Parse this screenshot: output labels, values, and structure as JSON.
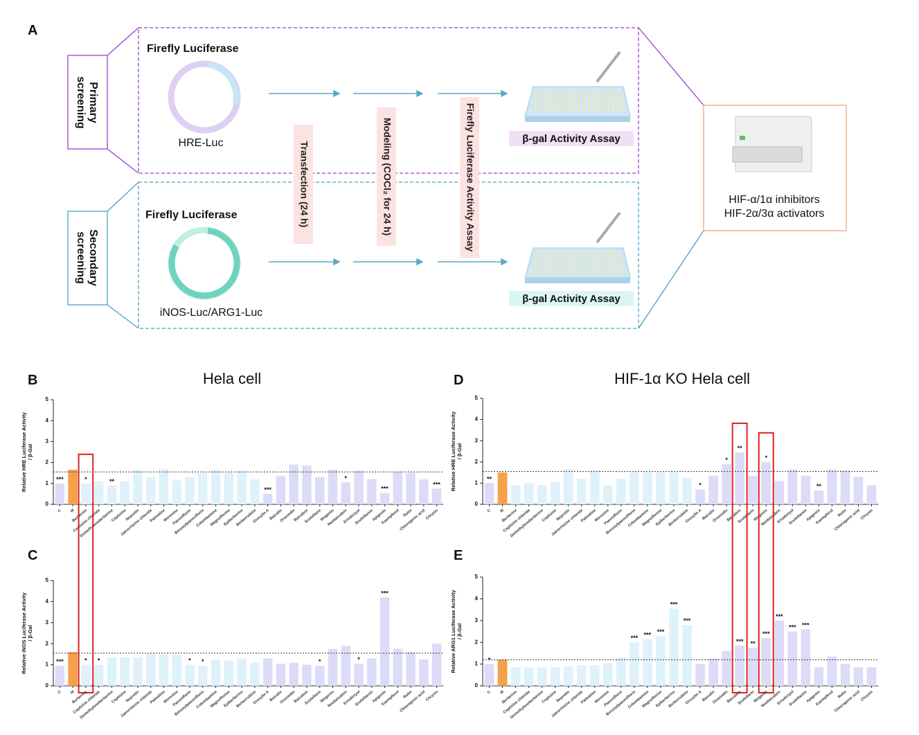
{
  "diagram": {
    "label": "A",
    "primary": {
      "label": [
        "Primary",
        "screening"
      ],
      "reporter": "Firefly Luciferase",
      "plasmid": "HRE-Luc",
      "assay": "β-gal Activity Assay"
    },
    "secondary": {
      "label": [
        "Secondary",
        "screening"
      ],
      "reporter": "Firefly Luciferase",
      "plasmid": "iNOS-Luc/ARG1-Luc",
      "assay": "β-gal Activity Assay"
    },
    "steps": [
      "Transfection (24 h)",
      "Modeling (COCl₂ for 24 h)",
      "Firefly Luciferase Activity Assay"
    ],
    "result": [
      "HIF-α/1α inhibitors",
      "HIF-2α/3α activators"
    ]
  },
  "chart_data": [
    {
      "type": "bar",
      "panel": "B",
      "title": "Hela cell",
      "ylabel": [
        "Relative HRE Luciferase Activity",
        "/ β-Gal"
      ],
      "categories": [
        "C",
        "M",
        "Berberine",
        "Coptisine chloride",
        "Demethyleneberberine",
        "Coptisine",
        "Neprotin",
        "Jatrorrhizine chloride",
        "Palmatine",
        "Worenine",
        "Paeoniflorin",
        "Benzoylpaeoniflorin",
        "Columbamine",
        "Magnoflorine",
        "Epiberberine",
        "Berberrubine",
        "Oroxylin A",
        "Baicalin",
        "Oroxindin",
        "Baicalein",
        "Scutellarin",
        "Wogonin",
        "Neobaicalein",
        "Eriodictyol",
        "Scutellarein",
        "Apigenin",
        "Kaempferol",
        "Rutin",
        "Chlorogenic acid",
        "Chrysin"
      ],
      "values": [
        1.0,
        1.65,
        1.0,
        1.1,
        0.9,
        1.1,
        1.65,
        1.3,
        1.7,
        1.15,
        1.3,
        1.5,
        1.65,
        1.5,
        1.6,
        1.2,
        0.5,
        1.35,
        1.9,
        1.85,
        1.3,
        1.65,
        1.05,
        1.6,
        1.2,
        0.55,
        1.55,
        1.5,
        1.2,
        0.75
      ],
      "significance": [
        "***",
        null,
        "*",
        null,
        "**",
        null,
        null,
        null,
        null,
        null,
        null,
        null,
        null,
        null,
        null,
        null,
        "***",
        null,
        null,
        null,
        null,
        null,
        "*",
        null,
        null,
        "***",
        null,
        null,
        null,
        "***"
      ],
      "colors": [
        "#dcdcf8",
        "#f5a04a",
        "#dff2fb",
        "#dff2fb",
        "#dff2fb",
        "#dff2fb",
        "#dff2fb",
        "#dff2fb",
        "#dff2fb",
        "#dff2fb",
        "#dff2fb",
        "#dff2fb",
        "#dff2fb",
        "#dff2fb",
        "#dff2fb",
        "#dff2fb",
        "#dcdcf8",
        "#dcdcf8",
        "#dcdcf8",
        "#dcdcf8",
        "#dcdcf8",
        "#dcdcf8",
        "#dcdcf8",
        "#dcdcf8",
        "#dcdcf8",
        "#dcdcf8",
        "#dcdcf8",
        "#dcdcf8",
        "#dcdcf8",
        "#dcdcf8"
      ],
      "reference_line": 1.55,
      "highlight": [
        "Berberine"
      ],
      "ylim": [
        0,
        5
      ],
      "yticks": [
        0,
        1,
        2,
        3,
        4,
        5
      ]
    },
    {
      "type": "bar",
      "panel": "C",
      "ylabel": [
        "Relative iNOS Luciferase Activity",
        "/ β-Gal"
      ],
      "categories": [
        "C",
        "M",
        "Berberine",
        "Coptisine chloride",
        "Demethyleneberberine",
        "Coptisine",
        "Neprotin",
        "Jatrorrhizine chloride",
        "Palmatine",
        "Worenine",
        "Paeoniflorin",
        "Benzoylpaeoniflorin",
        "Columbamine",
        "Magnoflorine",
        "Epiberberine",
        "Berberrubine",
        "Oroxylin A",
        "Baicalin",
        "Oroxindin",
        "Baicalein",
        "Scutellarin",
        "Wogonin",
        "Neobaicalein",
        "Eriodictyol",
        "Scutellarein",
        "Apigenin",
        "Kaempferol",
        "Rutin",
        "Chlorogenic acid",
        "Chrysin"
      ],
      "values": [
        0.95,
        1.6,
        1.0,
        1.0,
        1.35,
        1.35,
        1.35,
        1.55,
        1.5,
        1.45,
        1.0,
        0.95,
        1.25,
        1.2,
        1.3,
        1.1,
        1.3,
        1.05,
        1.1,
        1.0,
        0.95,
        1.75,
        1.9,
        1.05,
        1.3,
        4.2,
        1.75,
        1.6,
        1.25,
        2.0
      ],
      "significance": [
        "***",
        null,
        "*",
        "*",
        null,
        null,
        null,
        null,
        null,
        null,
        "*",
        "*",
        null,
        null,
        null,
        null,
        null,
        null,
        null,
        null,
        "*",
        null,
        null,
        "*",
        null,
        "***",
        null,
        null,
        null,
        null
      ],
      "colors": [
        "#dcdcf8",
        "#f5a04a",
        "#dff2fb",
        "#dff2fb",
        "#dff2fb",
        "#dff2fb",
        "#dff2fb",
        "#dff2fb",
        "#dff2fb",
        "#dff2fb",
        "#dff2fb",
        "#dff2fb",
        "#dff2fb",
        "#dff2fb",
        "#dff2fb",
        "#dff2fb",
        "#dcdcf8",
        "#dcdcf8",
        "#dcdcf8",
        "#dcdcf8",
        "#dcdcf8",
        "#dcdcf8",
        "#dcdcf8",
        "#dcdcf8",
        "#dcdcf8",
        "#dcdcf8",
        "#dcdcf8",
        "#dcdcf8",
        "#dcdcf8",
        "#dcdcf8"
      ],
      "reference_line": 1.55,
      "ylim": [
        0,
        5
      ],
      "yticks": [
        0,
        1,
        2,
        3,
        4,
        5
      ]
    },
    {
      "type": "bar",
      "panel": "D",
      "title": "HIF-1α KO Hela cell",
      "ylabel": [
        "Relative HRE Luciferase Activity",
        "/ β-Gal"
      ],
      "categories": [
        "C",
        "M",
        "Berberine",
        "Coptisine chloride",
        "Demethyleneberberine",
        "Coptisine",
        "Neprotin",
        "Jatrorrhizine chloride",
        "Palmatine",
        "Worenine",
        "Paeoniflorin",
        "Benzoylpaeoniflorin",
        "Columbamine",
        "Magnoflorine",
        "Epiberberine",
        "Berberrubine",
        "Oroxylin A",
        "Baicalin",
        "Oroxindin",
        "Baicalein",
        "Scutellarin",
        "Wogonin",
        "Neobaicalein",
        "Eriodictyol",
        "Scutellarein",
        "Apigenin",
        "Kaempferol",
        "Rutin",
        "Chlorogenic acid",
        "Chrysin"
      ],
      "values": [
        1.0,
        1.5,
        0.9,
        1.0,
        0.9,
        1.05,
        1.65,
        1.2,
        1.6,
        0.9,
        1.2,
        1.5,
        1.5,
        1.5,
        1.5,
        1.25,
        0.7,
        1.35,
        1.9,
        2.45,
        1.35,
        2.0,
        1.1,
        1.65,
        1.35,
        0.65,
        1.65,
        1.6,
        1.3,
        0.9
      ],
      "significance": [
        "**",
        null,
        null,
        null,
        null,
        null,
        null,
        null,
        null,
        null,
        null,
        null,
        null,
        null,
        null,
        null,
        "*",
        null,
        "*",
        "**",
        null,
        "*",
        null,
        null,
        null,
        "**",
        null,
        null,
        null,
        null
      ],
      "colors": [
        "#dcdcf8",
        "#f5a04a",
        "#dff2fb",
        "#dff2fb",
        "#dff2fb",
        "#dff2fb",
        "#dff2fb",
        "#dff2fb",
        "#dff2fb",
        "#dff2fb",
        "#dff2fb",
        "#dff2fb",
        "#dff2fb",
        "#dff2fb",
        "#dff2fb",
        "#dff2fb",
        "#dcdcf8",
        "#dcdcf8",
        "#dcdcf8",
        "#dcdcf8",
        "#dcdcf8",
        "#dcdcf8",
        "#dcdcf8",
        "#dcdcf8",
        "#dcdcf8",
        "#dcdcf8",
        "#dcdcf8",
        "#dcdcf8",
        "#dcdcf8",
        "#dcdcf8"
      ],
      "reference_line": 1.55,
      "highlight": [
        "Baicalein",
        "Wogonin"
      ],
      "ylim": [
        0,
        5
      ],
      "yticks": [
        0,
        1,
        2,
        3,
        4,
        5
      ]
    },
    {
      "type": "bar",
      "panel": "E",
      "ylabel": [
        "Relative ARG1 Luciferase Activity",
        "/ β-Gal"
      ],
      "categories": [
        "C",
        "M",
        "Berberine",
        "Coptisine chloride",
        "Demethyleneberberine",
        "Coptisine",
        "Neprotin",
        "Jatrorrhizine chloride",
        "Palmatine",
        "Worenine",
        "Paeoniflorin",
        "Benzoylpaeoniflorin",
        "Columbamine",
        "Magnoflorine",
        "Epiberberine",
        "Berberrubine",
        "Oroxylin A",
        "Baicalin",
        "Oroxindin",
        "Baicalein",
        "Scutellarin",
        "Wogonin",
        "Neobaicalein",
        "Eriodictyol",
        "Scutellarein",
        "Apigenin",
        "Kaempferol",
        "Rutin",
        "Chlorogenic acid",
        "Chrysin"
      ],
      "values": [
        1.0,
        1.2,
        0.85,
        0.85,
        0.85,
        0.85,
        0.9,
        0.95,
        0.95,
        1.05,
        1.3,
        2.0,
        2.15,
        2.3,
        3.55,
        2.8,
        1.0,
        1.25,
        1.6,
        1.85,
        1.75,
        2.2,
        3.0,
        2.5,
        2.6,
        0.85,
        1.35,
        1.0,
        0.85,
        0.85
      ],
      "significance": [
        "*",
        null,
        null,
        null,
        null,
        null,
        null,
        null,
        null,
        null,
        null,
        "***",
        "***",
        "***",
        "***",
        "***",
        null,
        null,
        null,
        "***",
        "**",
        "***",
        "***",
        "***",
        "***",
        null,
        null,
        null,
        null,
        null
      ],
      "colors": [
        "#dcdcf8",
        "#f5a04a",
        "#dff2fb",
        "#dff2fb",
        "#dff2fb",
        "#dff2fb",
        "#dff2fb",
        "#dff2fb",
        "#dff2fb",
        "#dff2fb",
        "#dff2fb",
        "#dff2fb",
        "#dff2fb",
        "#dff2fb",
        "#dff2fb",
        "#dff2fb",
        "#dcdcf8",
        "#dcdcf8",
        "#dcdcf8",
        "#dcdcf8",
        "#dcdcf8",
        "#dcdcf8",
        "#dcdcf8",
        "#dcdcf8",
        "#dcdcf8",
        "#dcdcf8",
        "#dcdcf8",
        "#dcdcf8",
        "#dcdcf8",
        "#dcdcf8"
      ],
      "reference_line": 1.2,
      "ylim": [
        0,
        5
      ],
      "yticks": [
        0,
        1,
        2,
        3,
        4,
        5
      ]
    }
  ]
}
